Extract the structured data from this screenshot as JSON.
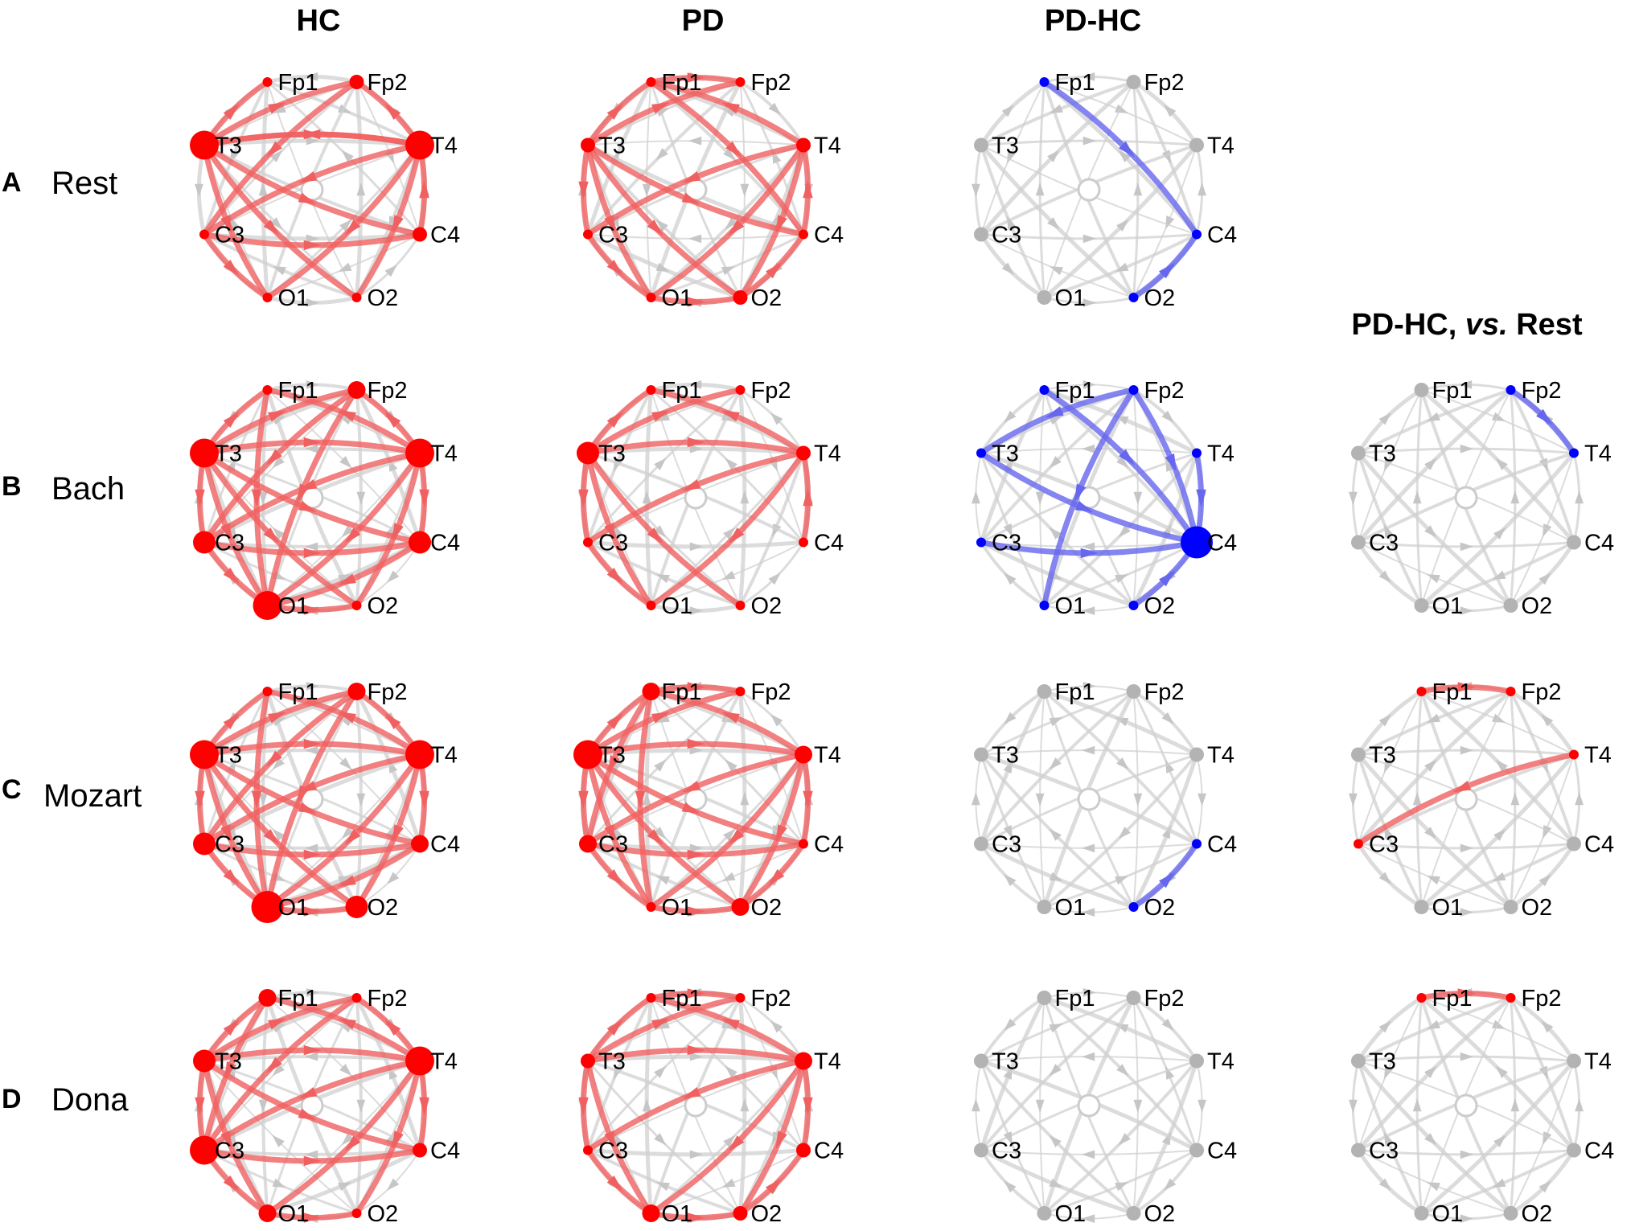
{
  "column_titles": [
    "HC",
    "PD",
    "PD-HC"
  ],
  "extra_column_title": {
    "prefix": "PD-HC, ",
    "italic": "vs.",
    "suffix": " Rest"
  },
  "rows": [
    {
      "letter": "A",
      "name": "Rest"
    },
    {
      "letter": "B",
      "name": "Bach"
    },
    {
      "letter": "C",
      "name": "Mozart"
    },
    {
      "letter": "D",
      "name": "Dona"
    }
  ],
  "electrodes": [
    "Fp1",
    "Fp2",
    "T4",
    "C4",
    "O2",
    "O1",
    "C3",
    "T3"
  ],
  "colors": {
    "red": "#ff0000",
    "blue": "#0000ff",
    "gray": "#b3b3b3",
    "red_edge": "#f06060",
    "blue_edge": "#6666ee",
    "gray_edge": "#c8c8c8"
  },
  "panels": [
    {
      "row": 0,
      "col": 0,
      "color": "red",
      "nodes": {
        "Fp1": 1,
        "Fp2": 2,
        "T3": 5,
        "T4": 5,
        "C3": 1,
        "C4": 2,
        "O1": 1,
        "O2": 1
      },
      "edges": [
        [
          "T3",
          "Fp1"
        ],
        [
          "T3",
          "Fp2"
        ],
        [
          "T3",
          "T4"
        ],
        [
          "T3",
          "C4"
        ],
        [
          "T3",
          "O1"
        ],
        [
          "T3",
          "O2"
        ],
        [
          "T4",
          "T3"
        ],
        [
          "T4",
          "C3"
        ],
        [
          "T4",
          "O1"
        ],
        [
          "T4",
          "O2"
        ],
        [
          "T4",
          "Fp2"
        ],
        [
          "C3",
          "C4"
        ],
        [
          "C4",
          "T4"
        ],
        [
          "Fp2",
          "C3"
        ],
        [
          "C3",
          "O1"
        ]
      ]
    },
    {
      "row": 0,
      "col": 1,
      "color": "red",
      "nodes": {
        "Fp1": 1,
        "Fp2": 1,
        "T3": 2,
        "T4": 2,
        "C3": 1,
        "C4": 1,
        "O1": 1,
        "O2": 2
      },
      "edges": [
        [
          "T3",
          "Fp1"
        ],
        [
          "T3",
          "Fp2"
        ],
        [
          "T3",
          "C3"
        ],
        [
          "T3",
          "O1"
        ],
        [
          "T3",
          "O2"
        ],
        [
          "T3",
          "C4"
        ],
        [
          "T4",
          "Fp1"
        ],
        [
          "T4",
          "C3"
        ],
        [
          "T4",
          "O1"
        ],
        [
          "T4",
          "O2"
        ],
        [
          "Fp1",
          "Fp2"
        ],
        [
          "Fp1",
          "C4"
        ],
        [
          "C4",
          "T4"
        ],
        [
          "C3",
          "O1"
        ],
        [
          "O1",
          "O2"
        ],
        [
          "O2",
          "C4"
        ]
      ]
    },
    {
      "row": 0,
      "col": 2,
      "color": "blue",
      "nodes": {
        "Fp1": 1,
        "Fp2": 0,
        "T3": 0,
        "T4": 0,
        "C3": 0,
        "C4": 1,
        "O1": 0,
        "O2": 1
      },
      "edges": [
        [
          "Fp1",
          "C4"
        ],
        [
          "O2",
          "C4"
        ]
      ]
    },
    {
      "row": 1,
      "col": 0,
      "color": "red",
      "nodes": {
        "Fp1": 1,
        "Fp2": 3,
        "T3": 5,
        "T4": 5,
        "C3": 4,
        "C4": 4,
        "O1": 5,
        "O2": 1
      },
      "edges": [
        [
          "T3",
          "Fp1"
        ],
        [
          "T3",
          "Fp2"
        ],
        [
          "T3",
          "T4"
        ],
        [
          "T3",
          "C4"
        ],
        [
          "T3",
          "O1"
        ],
        [
          "T3",
          "O2"
        ],
        [
          "T3",
          "C3"
        ],
        [
          "T4",
          "Fp1"
        ],
        [
          "T4",
          "Fp2"
        ],
        [
          "T4",
          "C3"
        ],
        [
          "T4",
          "C4"
        ],
        [
          "T4",
          "O1"
        ],
        [
          "T4",
          "O2"
        ],
        [
          "Fp1",
          "O1"
        ],
        [
          "Fp2",
          "O1"
        ],
        [
          "C3",
          "O1"
        ],
        [
          "C3",
          "C4"
        ],
        [
          "C4",
          "O1"
        ],
        [
          "Fp2",
          "C3"
        ],
        [
          "O1",
          "O2"
        ]
      ]
    },
    {
      "row": 1,
      "col": 1,
      "color": "red",
      "nodes": {
        "Fp1": 1,
        "Fp2": 1,
        "T3": 4,
        "T4": 2,
        "C3": 1,
        "C4": 1,
        "O1": 1,
        "O2": 1
      },
      "edges": [
        [
          "T3",
          "Fp1"
        ],
        [
          "T3",
          "Fp2"
        ],
        [
          "T3",
          "T4"
        ],
        [
          "T3",
          "O1"
        ],
        [
          "T3",
          "O2"
        ],
        [
          "T3",
          "C3"
        ],
        [
          "T4",
          "C3"
        ],
        [
          "T4",
          "O1"
        ],
        [
          "T4",
          "Fp1"
        ],
        [
          "C4",
          "T4"
        ],
        [
          "C3",
          "O1"
        ]
      ]
    },
    {
      "row": 1,
      "col": 2,
      "color": "blue",
      "nodes": {
        "Fp1": 1,
        "Fp2": 1,
        "T3": 1,
        "T4": 1,
        "C3": 1,
        "C4": 6,
        "O1": 1,
        "O2": 1
      },
      "edges": [
        [
          "Fp1",
          "C4"
        ],
        [
          "Fp2",
          "C4"
        ],
        [
          "T3",
          "C4"
        ],
        [
          "T4",
          "C4"
        ],
        [
          "C3",
          "C4"
        ],
        [
          "O2",
          "C4"
        ],
        [
          "Fp2",
          "T3"
        ],
        [
          "Fp2",
          "O1"
        ]
      ]
    },
    {
      "row": 1,
      "col": 3,
      "color": "blue",
      "nodes": {
        "Fp1": 0,
        "Fp2": 1,
        "T3": 0,
        "T4": 1,
        "C3": 0,
        "C4": 0,
        "O1": 0,
        "O2": 0
      },
      "edges": [
        [
          "Fp2",
          "T4"
        ]
      ]
    },
    {
      "row": 2,
      "col": 0,
      "color": "red",
      "nodes": {
        "Fp1": 1,
        "Fp2": 3,
        "T3": 5,
        "T4": 5,
        "C3": 4,
        "C4": 3,
        "O1": 6,
        "O2": 4
      },
      "edges": [
        [
          "T3",
          "Fp1"
        ],
        [
          "T3",
          "Fp2"
        ],
        [
          "T3",
          "T4"
        ],
        [
          "T3",
          "C4"
        ],
        [
          "T3",
          "O1"
        ],
        [
          "T3",
          "O2"
        ],
        [
          "T3",
          "C3"
        ],
        [
          "T4",
          "Fp1"
        ],
        [
          "T4",
          "Fp2"
        ],
        [
          "T4",
          "C3"
        ],
        [
          "T4",
          "C4"
        ],
        [
          "T4",
          "O1"
        ],
        [
          "T4",
          "O2"
        ],
        [
          "Fp1",
          "O1"
        ],
        [
          "Fp2",
          "O1"
        ],
        [
          "C3",
          "O1"
        ],
        [
          "C4",
          "O1"
        ],
        [
          "C3",
          "C4"
        ],
        [
          "O1",
          "O2"
        ],
        [
          "Fp2",
          "C3"
        ]
      ]
    },
    {
      "row": 2,
      "col": 1,
      "color": "red",
      "nodes": {
        "Fp1": 3,
        "Fp2": 1,
        "T3": 5,
        "T4": 3,
        "C3": 3,
        "C4": 1,
        "O1": 1,
        "O2": 3
      },
      "edges": [
        [
          "T3",
          "Fp1"
        ],
        [
          "T3",
          "Fp2"
        ],
        [
          "T3",
          "T4"
        ],
        [
          "T3",
          "C4"
        ],
        [
          "T3",
          "O1"
        ],
        [
          "T3",
          "O2"
        ],
        [
          "T3",
          "C3"
        ],
        [
          "T4",
          "Fp1"
        ],
        [
          "T4",
          "C3"
        ],
        [
          "T4",
          "O1"
        ],
        [
          "T4",
          "O2"
        ],
        [
          "T4",
          "C4"
        ],
        [
          "Fp1",
          "Fp2"
        ],
        [
          "Fp1",
          "O1"
        ],
        [
          "Fp1",
          "C3"
        ],
        [
          "C3",
          "O1"
        ],
        [
          "C3",
          "C4"
        ],
        [
          "C4",
          "O2"
        ],
        [
          "O1",
          "O2"
        ]
      ]
    },
    {
      "row": 2,
      "col": 2,
      "color": "blue",
      "nodes": {
        "Fp1": 0,
        "Fp2": 0,
        "T3": 0,
        "T4": 0,
        "C3": 0,
        "C4": 1,
        "O1": 0,
        "O2": 1
      },
      "edges": [
        [
          "O2",
          "C4"
        ]
      ]
    },
    {
      "row": 2,
      "col": 3,
      "color": "red",
      "nodes": {
        "Fp1": 1,
        "Fp2": 1,
        "T3": 0,
        "T4": 1,
        "C3": 1,
        "C4": 0,
        "O1": 0,
        "O2": 0
      },
      "edges": [
        [
          "Fp1",
          "Fp2"
        ],
        [
          "T4",
          "C3"
        ]
      ]
    },
    {
      "row": 3,
      "col": 0,
      "color": "red",
      "nodes": {
        "Fp1": 3,
        "Fp2": 1,
        "T3": 4,
        "T4": 5,
        "C3": 5,
        "C4": 2,
        "O1": 3,
        "O2": 1
      },
      "edges": [
        [
          "T3",
          "Fp1"
        ],
        [
          "T3",
          "Fp2"
        ],
        [
          "T3",
          "T4"
        ],
        [
          "T3",
          "C4"
        ],
        [
          "T3",
          "O1"
        ],
        [
          "T3",
          "C3"
        ],
        [
          "T4",
          "Fp1"
        ],
        [
          "T4",
          "Fp2"
        ],
        [
          "T4",
          "C3"
        ],
        [
          "T4",
          "C4"
        ],
        [
          "T4",
          "O1"
        ],
        [
          "T4",
          "O2"
        ],
        [
          "Fp1",
          "C3"
        ],
        [
          "C3",
          "O1"
        ],
        [
          "C3",
          "C4"
        ],
        [
          "Fp2",
          "C3"
        ],
        [
          "O1",
          "O2"
        ]
      ]
    },
    {
      "row": 3,
      "col": 1,
      "color": "red",
      "nodes": {
        "Fp1": 1,
        "Fp2": 1,
        "T3": 2,
        "T4": 3,
        "C3": 1,
        "C4": 2,
        "O1": 3,
        "O2": 2
      },
      "edges": [
        [
          "T3",
          "Fp1"
        ],
        [
          "T3",
          "Fp2"
        ],
        [
          "T3",
          "T4"
        ],
        [
          "T3",
          "O1"
        ],
        [
          "T3",
          "C3"
        ],
        [
          "T4",
          "Fp1"
        ],
        [
          "T4",
          "C3"
        ],
        [
          "T4",
          "O1"
        ],
        [
          "T4",
          "O2"
        ],
        [
          "T4",
          "C4"
        ],
        [
          "C3",
          "O1"
        ],
        [
          "O1",
          "O2"
        ],
        [
          "O2",
          "C4"
        ],
        [
          "Fp1",
          "Fp2"
        ]
      ]
    },
    {
      "row": 3,
      "col": 2,
      "color": "none",
      "nodes": {
        "Fp1": 0,
        "Fp2": 0,
        "T3": 0,
        "T4": 0,
        "C3": 0,
        "C4": 0,
        "O1": 0,
        "O2": 0
      },
      "edges": []
    },
    {
      "row": 3,
      "col": 3,
      "color": "red",
      "nodes": {
        "Fp1": 1,
        "Fp2": 1,
        "T3": 0,
        "T4": 0,
        "C3": 0,
        "C4": 0,
        "O1": 0,
        "O2": 0
      },
      "edges": [
        [
          "Fp1",
          "Fp2"
        ]
      ]
    }
  ]
}
